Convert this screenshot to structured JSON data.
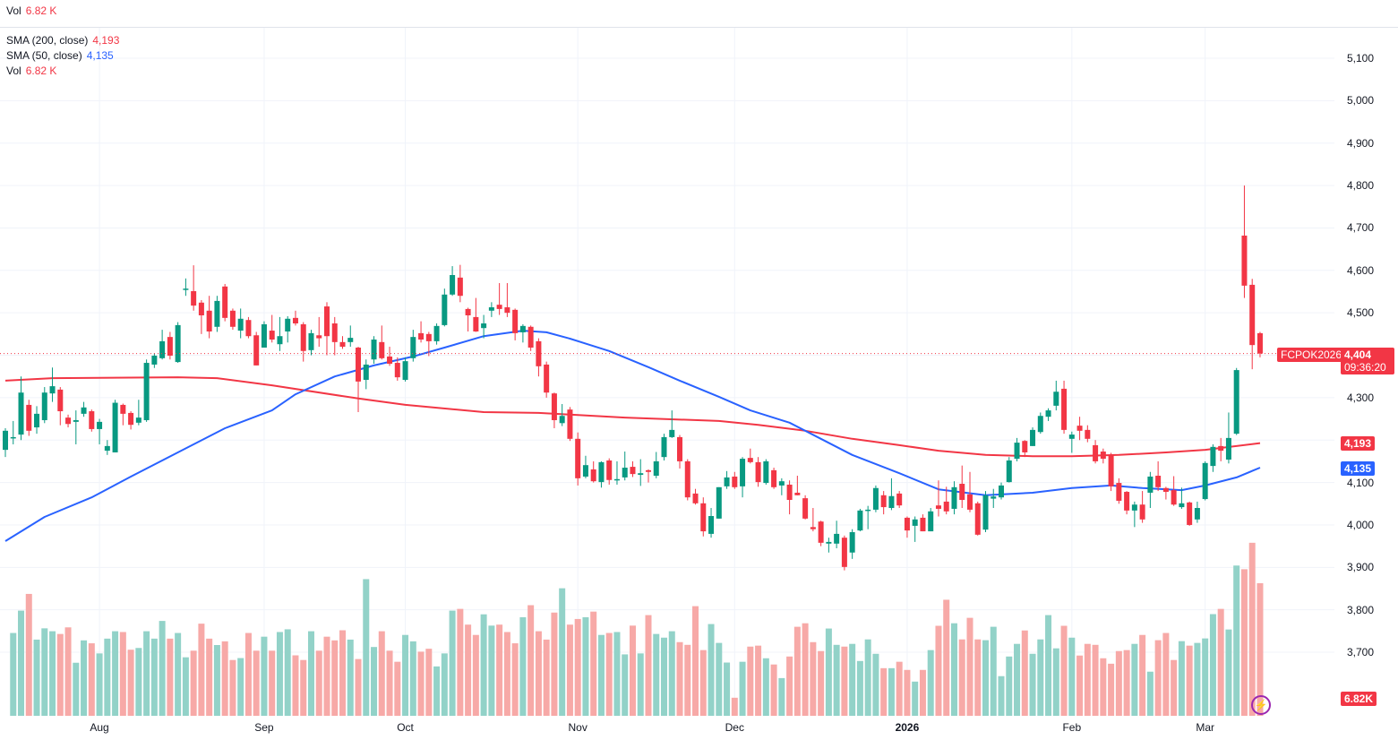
{
  "top_legend": {
    "label": "Vol",
    "value": "6.82 K"
  },
  "legend": [
    {
      "label": "SMA (200, close)",
      "value": "4,193",
      "color": "#f23645"
    },
    {
      "label": "SMA (50, close)",
      "value": "4,135",
      "color": "#2962ff"
    },
    {
      "label": "Vol",
      "value": "6.82 K",
      "color": "#f23645"
    }
  ],
  "price_tag": {
    "symbol": "FCPOK2026",
    "price": "4,404",
    "countdown": "09:36:20"
  },
  "sma200_tag": "4,193",
  "sma50_tag": "4,135",
  "vol_tag": "6.82K",
  "colors": {
    "up": "#089981",
    "down": "#f23645",
    "up_vol": "#92d2c8",
    "down_vol": "#f7a9a7",
    "sma200": "#f23645",
    "sma50": "#2962ff"
  },
  "chart_data": {
    "type": "candlestick",
    "symbol": "FCPOK2026",
    "ylim": [
      3650,
      5150
    ],
    "y_ticks": [
      "5,100",
      "5,000",
      "4,900",
      "4,800",
      "4,700",
      "4,600",
      "4,500",
      "4,300",
      "4,100",
      "4,000",
      "3,900",
      "3,800",
      "3,700"
    ],
    "y_tick_values": [
      5100,
      5000,
      4900,
      4800,
      4700,
      4600,
      4500,
      4300,
      4100,
      4000,
      3900,
      3800,
      3700
    ],
    "x_ticks": [
      {
        "label": "Aug",
        "index": 12
      },
      {
        "label": "Sep",
        "index": 33
      },
      {
        "label": "Oct",
        "index": 51
      },
      {
        "label": "Nov",
        "index": 73
      },
      {
        "label": "Dec",
        "index": 93
      },
      {
        "label": "2026",
        "index": 115,
        "bold": true
      },
      {
        "label": "Feb",
        "index": 136
      },
      {
        "label": "Mar",
        "index": 153
      }
    ],
    "last_price": 4404,
    "ohlc": [
      [
        4177,
        4228,
        4160,
        4222
      ],
      [
        4207,
        4245,
        4190,
        4207
      ],
      [
        4213,
        4350,
        4200,
        4312
      ],
      [
        4283,
        4295,
        4210,
        4222
      ],
      [
        4230,
        4280,
        4215,
        4262
      ],
      [
        4247,
        4325,
        4240,
        4312
      ],
      [
        4310,
        4371,
        4290,
        4327
      ],
      [
        4319,
        4325,
        4235,
        4268
      ],
      [
        4253,
        4260,
        4230,
        4238
      ],
      [
        4243,
        4270,
        4190,
        4247
      ],
      [
        4262,
        4290,
        4255,
        4277
      ],
      [
        4268,
        4272,
        4220,
        4226
      ],
      [
        4226,
        4250,
        4190,
        4243
      ],
      [
        4175,
        4200,
        4165,
        4186
      ],
      [
        4171,
        4295,
        4171,
        4288
      ],
      [
        4283,
        4286,
        4235,
        4262
      ],
      [
        4264,
        4268,
        4225,
        4236
      ],
      [
        4241,
        4295,
        4235,
        4253
      ],
      [
        4247,
        4390,
        4243,
        4382
      ],
      [
        4378,
        4405,
        4370,
        4399
      ],
      [
        4393,
        4460,
        4390,
        4433
      ],
      [
        4443,
        4455,
        4390,
        4399
      ],
      [
        4384,
        4478,
        4382,
        4471
      ],
      [
        4555,
        4581,
        4540,
        4557
      ],
      [
        4551,
        4612,
        4505,
        4517
      ],
      [
        4524,
        4530,
        4450,
        4494
      ],
      [
        4505,
        4540,
        4440,
        4456
      ],
      [
        4467,
        4540,
        4455,
        4528
      ],
      [
        4562,
        4568,
        4480,
        4488
      ],
      [
        4505,
        4510,
        4460,
        4467
      ],
      [
        4458,
        4510,
        4440,
        4486
      ],
      [
        4483,
        4490,
        4440,
        4445
      ],
      [
        4447,
        4455,
        4376,
        4376
      ],
      [
        4418,
        4480,
        4418,
        4473
      ],
      [
        4458,
        4495,
        4430,
        4437
      ],
      [
        4426,
        4490,
        4410,
        4445
      ],
      [
        4456,
        4492,
        4430,
        4486
      ],
      [
        4488,
        4505,
        4470,
        4475
      ],
      [
        4473,
        4478,
        4385,
        4410
      ],
      [
        4412,
        4460,
        4400,
        4452
      ],
      [
        4447,
        4490,
        4420,
        4440
      ],
      [
        4515,
        4525,
        4400,
        4445
      ],
      [
        4475,
        4490,
        4400,
        4431
      ],
      [
        4431,
        4445,
        4415,
        4420
      ],
      [
        4431,
        4470,
        4420,
        4441
      ],
      [
        4418,
        4420,
        4266,
        4338
      ],
      [
        4342,
        4390,
        4320,
        4378
      ],
      [
        4390,
        4445,
        4380,
        4437
      ],
      [
        4431,
        4470,
        4390,
        4393
      ],
      [
        4397,
        4420,
        4375,
        4380
      ],
      [
        4382,
        4395,
        4340,
        4348
      ],
      [
        4342,
        4395,
        4338,
        4386
      ],
      [
        4393,
        4460,
        4385,
        4443
      ],
      [
        4452,
        4480,
        4430,
        4437
      ],
      [
        4450,
        4455,
        4398,
        4433
      ],
      [
        4433,
        4475,
        4425,
        4469
      ],
      [
        4471,
        4557,
        4468,
        4543
      ],
      [
        4543,
        4610,
        4540,
        4589
      ],
      [
        4583,
        4613,
        4525,
        4540
      ],
      [
        4509,
        4512,
        4456,
        4494
      ],
      [
        4490,
        4535,
        4455,
        4456
      ],
      [
        4464,
        4495,
        4440,
        4475
      ],
      [
        4505,
        4525,
        4490,
        4513
      ],
      [
        4519,
        4570,
        4495,
        4509
      ],
      [
        4513,
        4570,
        4490,
        4500
      ],
      [
        4507,
        4510,
        4435,
        4452
      ],
      [
        4454,
        4473,
        4430,
        4469
      ],
      [
        4467,
        4470,
        4410,
        4418
      ],
      [
        4433,
        4440,
        4350,
        4374
      ],
      [
        4378,
        4385,
        4300,
        4312
      ],
      [
        4310,
        4312,
        4228,
        4247
      ],
      [
        4240,
        4285,
        4233,
        4257
      ],
      [
        4272,
        4278,
        4198,
        4203
      ],
      [
        4203,
        4218,
        4093,
        4110
      ],
      [
        4114,
        4163,
        4110,
        4141
      ],
      [
        4131,
        4150,
        4100,
        4103
      ],
      [
        4101,
        4150,
        4088,
        4148
      ],
      [
        4152,
        4157,
        4095,
        4106
      ],
      [
        4108,
        4150,
        4095,
        4108
      ],
      [
        4112,
        4173,
        4105,
        4135
      ],
      [
        4137,
        4150,
        4113,
        4120
      ],
      [
        4118,
        4155,
        4092,
        4122
      ],
      [
        4129,
        4131,
        4100,
        4125
      ],
      [
        4116,
        4172,
        4110,
        4150
      ],
      [
        4160,
        4215,
        4152,
        4207
      ],
      [
        4207,
        4270,
        4205,
        4224
      ],
      [
        4207,
        4212,
        4133,
        4150
      ],
      [
        4150,
        4155,
        4058,
        4065
      ],
      [
        4074,
        4085,
        4048,
        4051
      ],
      [
        4051,
        4065,
        3973,
        3985
      ],
      [
        3979,
        4040,
        3970,
        4021
      ],
      [
        4015,
        4089,
        4015,
        4089
      ],
      [
        4091,
        4127,
        4085,
        4112
      ],
      [
        4114,
        4125,
        4085,
        4089
      ],
      [
        4091,
        4160,
        4065,
        4156
      ],
      [
        4158,
        4180,
        4145,
        4148
      ],
      [
        4148,
        4160,
        4090,
        4101
      ],
      [
        4099,
        4155,
        4095,
        4150
      ],
      [
        4129,
        4135,
        4085,
        4089
      ],
      [
        4093,
        4110,
        4070,
        4103
      ],
      [
        4095,
        4105,
        4025,
        4059
      ],
      [
        4076,
        4116,
        4070,
        4070
      ],
      [
        4063,
        4070,
        4013,
        4015
      ],
      [
        3995,
        4040,
        3985,
        3990
      ],
      [
        4008,
        4010,
        3950,
        3958
      ],
      [
        3956,
        3970,
        3935,
        3960
      ],
      [
        3956,
        4010,
        3945,
        3979
      ],
      [
        3970,
        3975,
        3893,
        3901
      ],
      [
        3935,
        3990,
        3920,
        3983
      ],
      [
        3987,
        4038,
        3985,
        4034
      ],
      [
        4034,
        4045,
        3990,
        4036
      ],
      [
        4036,
        4093,
        4030,
        4087
      ],
      [
        4070,
        4080,
        4025,
        4042
      ],
      [
        4040,
        4110,
        4035,
        4068
      ],
      [
        4074,
        4080,
        4040,
        4046
      ],
      [
        4017,
        4020,
        3970,
        3987
      ],
      [
        3998,
        4020,
        3960,
        4013
      ],
      [
        4017,
        4025,
        3985,
        3985
      ],
      [
        3985,
        4040,
        3985,
        4032
      ],
      [
        4046,
        4105,
        4020,
        4038
      ],
      [
        4055,
        4090,
        4025,
        4032
      ],
      [
        4038,
        4103,
        4025,
        4089
      ],
      [
        4097,
        4140,
        4040,
        4059
      ],
      [
        4072,
        4125,
        4030,
        4036
      ],
      [
        4051,
        4055,
        3975,
        3977
      ],
      [
        3989,
        4080,
        3983,
        4070
      ],
      [
        4062,
        4085,
        4040,
        4067
      ],
      [
        4065,
        4100,
        4060,
        4093
      ],
      [
        4101,
        4160,
        4100,
        4152
      ],
      [
        4156,
        4205,
        4150,
        4194
      ],
      [
        4198,
        4200,
        4160,
        4171
      ],
      [
        4186,
        4230,
        4186,
        4224
      ],
      [
        4219,
        4265,
        4215,
        4257
      ],
      [
        4255,
        4275,
        4245,
        4270
      ],
      [
        4281,
        4340,
        4270,
        4314
      ],
      [
        4321,
        4340,
        4215,
        4224
      ],
      [
        4203,
        4220,
        4170,
        4213
      ],
      [
        4234,
        4255,
        4200,
        4222
      ],
      [
        4224,
        4235,
        4195,
        4203
      ],
      [
        4188,
        4200,
        4145,
        4150
      ],
      [
        4173,
        4180,
        4145,
        4156
      ],
      [
        4165,
        4170,
        4080,
        4091
      ],
      [
        4099,
        4110,
        4050,
        4057
      ],
      [
        4078,
        4080,
        4025,
        4034
      ],
      [
        4034,
        4055,
        3995,
        4048
      ],
      [
        4048,
        4080,
        4005,
        4013
      ],
      [
        4076,
        4125,
        4040,
        4114
      ],
      [
        4116,
        4150,
        4080,
        4089
      ],
      [
        4087,
        4090,
        4060,
        4078
      ],
      [
        4082,
        4115,
        4045,
        4048
      ],
      [
        4042,
        4088,
        4038,
        4051
      ],
      [
        4053,
        4055,
        3998,
        4000
      ],
      [
        4013,
        4055,
        4005,
        4040
      ],
      [
        4061,
        4150,
        4058,
        4146
      ],
      [
        4139,
        4190,
        4125,
        4184
      ],
      [
        4186,
        4205,
        4150,
        4175
      ],
      [
        4154,
        4265,
        4145,
        4205
      ],
      [
        4215,
        4370,
        4212,
        4365
      ],
      [
        4682,
        4800,
        4535,
        4564
      ],
      [
        4566,
        4580,
        4367,
        4424
      ],
      [
        4452,
        4455,
        4395,
        4404
      ]
    ],
    "volume_k": [
      4.26,
      5.41,
      6.27,
      3.92,
      4.5,
      4.35,
      4.21,
      4.55,
      2.73,
      3.88,
      3.73,
      3.21,
      3.97,
      4.35,
      4.31,
      3.4,
      3.49,
      4.35,
      3.97,
      4.88,
      3.97,
      4.26,
      3.01,
      3.35,
      4.74,
      3.97,
      3.64,
      3.83,
      2.87,
      2.97,
      4.26,
      3.35,
      4.07,
      3.35,
      4.31,
      4.45,
      3.11,
      2.87,
      4.35,
      3.35,
      4.07,
      3.88,
      4.4,
      3.92,
      2.92,
      7.03,
      3.54,
      4.35,
      3.35,
      2.78,
      4.16,
      3.83,
      3.3,
      3.45,
      2.54,
      3.21,
      5.41,
      5.5,
      4.69,
      4.16,
      5.22,
      4.64,
      4.69,
      4.31,
      3.73,
      5.07,
      5.69,
      4.35,
      3.92,
      5.31,
      6.56,
      4.69,
      4.98,
      5.07,
      5.36,
      4.16,
      4.26,
      4.31,
      3.16,
      4.64,
      3.21,
      5.18,
      4.21,
      4.02,
      4.35,
      3.79,
      3.65,
      5.64,
      3.38,
      4.72,
      3.75,
      2.74,
      0.93,
      2.78,
      3.56,
      3.61,
      2.96,
      2.64,
      1.94,
      3.05,
      4.58,
      4.76,
      3.79,
      3.33,
      4.49,
      3.65,
      3.56,
      3.7,
      2.82,
      3.93,
      3.19,
      2.45,
      2.45,
      2.78,
      2.36,
      1.76,
      2.36,
      3.38,
      4.63,
      5.97,
      4.76,
      3.93,
      5.04,
      3.93,
      3.89,
      4.58,
      2.04,
      3.05,
      3.7,
      4.39,
      3.19,
      3.93,
      5.18,
      3.47,
      4.63,
      4.02,
      3.1,
      3.7,
      3.65,
      2.96,
      2.68,
      3.33,
      3.38,
      3.7,
      4.16,
      2.27,
      3.89,
      4.26,
      2.87,
      3.84,
      3.61,
      3.75,
      3.98,
      5.23,
      5.5,
      4.44,
      7.73,
      7.54,
      8.9,
      6.82
    ],
    "volume_max_k": 11.5,
    "sma200": [
      [
        0,
        4340
      ],
      [
        6,
        4346
      ],
      [
        22,
        4348
      ],
      [
        27,
        4346
      ],
      [
        34,
        4329
      ],
      [
        45,
        4298
      ],
      [
        51,
        4283
      ],
      [
        61,
        4266
      ],
      [
        68,
        4264
      ],
      [
        72,
        4260
      ],
      [
        79,
        4253
      ],
      [
        91,
        4245
      ],
      [
        96,
        4236
      ],
      [
        102,
        4222
      ],
      [
        108,
        4203
      ],
      [
        114,
        4188
      ],
      [
        119,
        4175
      ],
      [
        125,
        4165
      ],
      [
        131,
        4162
      ],
      [
        136,
        4162
      ],
      [
        142,
        4165
      ],
      [
        148,
        4171
      ],
      [
        153,
        4177
      ],
      [
        160,
        4193
      ]
    ],
    "sma50": [
      [
        0,
        3962
      ],
      [
        5,
        4019
      ],
      [
        11,
        4065
      ],
      [
        16,
        4114
      ],
      [
        22,
        4171
      ],
      [
        28,
        4228
      ],
      [
        34,
        4270
      ],
      [
        37,
        4308
      ],
      [
        42,
        4350
      ],
      [
        47,
        4376
      ],
      [
        52,
        4397
      ],
      [
        56,
        4418
      ],
      [
        61,
        4445
      ],
      [
        66,
        4458
      ],
      [
        69,
        4454
      ],
      [
        72,
        4439
      ],
      [
        77,
        4410
      ],
      [
        82,
        4372
      ],
      [
        86,
        4340
      ],
      [
        91,
        4302
      ],
      [
        95,
        4270
      ],
      [
        100,
        4241
      ],
      [
        104,
        4203
      ],
      [
        108,
        4165
      ],
      [
        114,
        4122
      ],
      [
        119,
        4084
      ],
      [
        125,
        4070
      ],
      [
        131,
        4076
      ],
      [
        136,
        4087
      ],
      [
        141,
        4093
      ],
      [
        145,
        4087
      ],
      [
        150,
        4082
      ],
      [
        153,
        4093
      ],
      [
        157,
        4112
      ],
      [
        160,
        4135
      ]
    ]
  }
}
